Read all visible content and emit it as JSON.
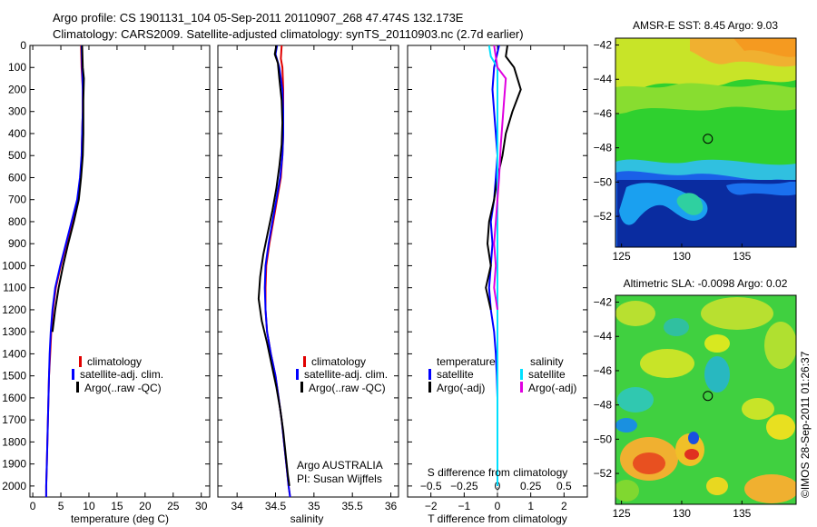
{
  "figure": {
    "title_line1": "Argo profile: CS 1901131_104 05-Sep-2011 20110907_268 47.474S 132.173E",
    "title_line2": "Climatology: CARS2009. Satellite-adjusted climatology: synTS_20110903.nc (2.7d earlier)",
    "watermark": "©IMOS 28-Sep-2011 01:26:37"
  },
  "colors": {
    "climatology": "#e00000",
    "satellite": "#0000ff",
    "argo": "#000000",
    "salinity_satellite": "#00e0ff",
    "salinity_argo": "#e000e0"
  },
  "chart_data": [
    {
      "id": "temperature",
      "type": "line",
      "xlabel": "temperature (deg C)",
      "ylabel": "",
      "xlim": [
        -0.5,
        31.5
      ],
      "ylim": [
        0,
        2050
      ],
      "y_inverted": true,
      "xticks": [
        0,
        5,
        10,
        15,
        20,
        25,
        30
      ],
      "yticks": [
        0,
        100,
        200,
        300,
        400,
        500,
        600,
        700,
        800,
        900,
        1000,
        1100,
        1200,
        1300,
        1400,
        1500,
        1600,
        1700,
        1800,
        1900,
        2000
      ],
      "legend": {
        "position": "lower-right",
        "entries": [
          "climatology",
          "satellite-adj. clim.",
          "Argo(..raw -QC)"
        ]
      },
      "series": [
        {
          "name": "climatology",
          "color_key": "climatology",
          "points": [
            [
              8.6,
              0
            ],
            [
              8.7,
              100
            ],
            [
              8.9,
              200
            ],
            [
              8.9,
              300
            ],
            [
              8.8,
              400
            ],
            [
              8.7,
              500
            ],
            [
              8.5,
              600
            ],
            [
              8.0,
              700
            ],
            [
              7.0,
              800
            ],
            [
              6.0,
              900
            ],
            [
              5.0,
              1000
            ],
            [
              4.1,
              1100
            ],
            [
              3.6,
              1200
            ],
            [
              3.3,
              1300
            ],
            [
              3.1,
              1400
            ],
            [
              2.9,
              1500
            ],
            [
              2.8,
              1600
            ],
            [
              2.7,
              1700
            ],
            [
              2.6,
              1800
            ],
            [
              2.5,
              1900
            ],
            [
              2.4,
              2000
            ],
            [
              2.4,
              2050
            ]
          ]
        },
        {
          "name": "satellite-adj. clim.",
          "color_key": "satellite",
          "points": [
            [
              8.7,
              0
            ],
            [
              8.8,
              100
            ],
            [
              8.9,
              200
            ],
            [
              8.9,
              300
            ],
            [
              8.8,
              400
            ],
            [
              8.7,
              500
            ],
            [
              8.4,
              600
            ],
            [
              7.9,
              700
            ],
            [
              6.9,
              800
            ],
            [
              5.9,
              900
            ],
            [
              4.9,
              1000
            ],
            [
              4.0,
              1100
            ],
            [
              3.5,
              1200
            ],
            [
              3.2,
              1300
            ],
            [
              3.0,
              1400
            ],
            [
              2.9,
              1500
            ],
            [
              2.8,
              1600
            ],
            [
              2.7,
              1700
            ],
            [
              2.6,
              1800
            ],
            [
              2.5,
              1900
            ],
            [
              2.4,
              2000
            ],
            [
              2.4,
              2050
            ]
          ]
        },
        {
          "name": "Argo(..raw -QC)",
          "color_key": "argo",
          "points": [
            [
              8.8,
              0
            ],
            [
              8.9,
              100
            ],
            [
              9.1,
              150
            ],
            [
              9.0,
              250
            ],
            [
              9.0,
              400
            ],
            [
              8.9,
              500
            ],
            [
              8.6,
              600
            ],
            [
              8.2,
              700
            ],
            [
              7.3,
              800
            ],
            [
              6.3,
              900
            ],
            [
              5.4,
              1000
            ],
            [
              4.6,
              1100
            ],
            [
              4.0,
              1200
            ],
            [
              3.5,
              1300
            ]
          ]
        }
      ]
    },
    {
      "id": "salinity",
      "type": "line",
      "xlabel": "salinity",
      "ylabel": "",
      "xlim": [
        33.75,
        36.1
      ],
      "ylim": [
        0,
        2050
      ],
      "y_inverted": true,
      "xticks": [
        34,
        34.5,
        35,
        35.5,
        36
      ],
      "legend": {
        "position": "lower-right",
        "entries": [
          "climatology",
          "satellite-adj. clim.",
          "Argo(..raw -QC)"
        ]
      },
      "annotation": [
        "Argo AUSTRALIA",
        "PI: Susan Wijffels"
      ],
      "series": [
        {
          "name": "climatology",
          "color_key": "climatology",
          "points": [
            [
              34.58,
              0
            ],
            [
              34.57,
              60
            ],
            [
              34.59,
              100
            ],
            [
              34.6,
              200
            ],
            [
              34.6,
              300
            ],
            [
              34.6,
              400
            ],
            [
              34.59,
              500
            ],
            [
              34.57,
              600
            ],
            [
              34.52,
              700
            ],
            [
              34.47,
              800
            ],
            [
              34.42,
              900
            ],
            [
              34.38,
              1000
            ],
            [
              34.37,
              1100
            ],
            [
              34.37,
              1200
            ],
            [
              34.39,
              1300
            ],
            [
              34.44,
              1400
            ],
            [
              34.5,
              1500
            ],
            [
              34.54,
              1600
            ],
            [
              34.58,
              1700
            ],
            [
              34.61,
              1800
            ],
            [
              34.64,
              1900
            ],
            [
              34.67,
              2000
            ],
            [
              34.69,
              2050
            ]
          ]
        },
        {
          "name": "satellite-adj. clim.",
          "color_key": "satellite",
          "points": [
            [
              34.52,
              0
            ],
            [
              34.5,
              40
            ],
            [
              34.55,
              100
            ],
            [
              34.59,
              200
            ],
            [
              34.6,
              300
            ],
            [
              34.6,
              400
            ],
            [
              34.59,
              500
            ],
            [
              34.56,
              600
            ],
            [
              34.51,
              700
            ],
            [
              34.46,
              800
            ],
            [
              34.41,
              900
            ],
            [
              34.37,
              1000
            ],
            [
              34.36,
              1100
            ],
            [
              34.37,
              1200
            ],
            [
              34.39,
              1300
            ],
            [
              34.44,
              1400
            ],
            [
              34.5,
              1500
            ],
            [
              34.54,
              1600
            ],
            [
              34.58,
              1700
            ],
            [
              34.61,
              1800
            ],
            [
              34.64,
              1900
            ],
            [
              34.67,
              2000
            ],
            [
              34.69,
              2050
            ]
          ]
        },
        {
          "name": "Argo(..raw -QC)",
          "color_key": "argo",
          "points": [
            [
              34.51,
              0
            ],
            [
              34.49,
              40
            ],
            [
              34.53,
              80
            ],
            [
              34.55,
              150
            ],
            [
              34.58,
              250
            ],
            [
              34.59,
              350
            ],
            [
              34.58,
              450
            ],
            [
              34.55,
              550
            ],
            [
              34.51,
              650
            ],
            [
              34.46,
              750
            ],
            [
              34.4,
              850
            ],
            [
              34.34,
              950
            ],
            [
              34.3,
              1050
            ],
            [
              34.28,
              1150
            ],
            [
              34.32,
              1250
            ],
            [
              34.39,
              1350
            ],
            [
              34.45,
              1450
            ],
            [
              34.51,
              1550
            ],
            [
              34.56,
              1650
            ],
            [
              34.6,
              1750
            ],
            [
              34.63,
              1850
            ],
            [
              34.66,
              1950
            ],
            [
              34.68,
              2000
            ]
          ]
        }
      ]
    },
    {
      "id": "difference",
      "type": "line",
      "xlabel": "T difference from climatology",
      "xlabel_top": "S difference from climatology",
      "ylabel": "",
      "xlim": [
        -2.7,
        2.7
      ],
      "ylim": [
        0,
        2050
      ],
      "y_inverted": true,
      "xticks": [
        -2,
        -1,
        0,
        1,
        2
      ],
      "xticks_s": [
        -0.5,
        -0.25,
        0,
        0.25,
        0.5
      ],
      "legend": {
        "position": "lower-right",
        "headers": [
          "temperature",
          "salinity"
        ],
        "entries": [
          "satellite",
          "Argo(-adj)",
          "satellite",
          "Argo(-adj)"
        ]
      },
      "series": [
        {
          "name": "temperature satellite",
          "color_key": "satellite",
          "points": [
            [
              0.05,
              0
            ],
            [
              -0.1,
              100
            ],
            [
              -0.15,
              200
            ],
            [
              -0.1,
              300
            ],
            [
              -0.05,
              400
            ],
            [
              0.0,
              500
            ],
            [
              -0.05,
              600
            ],
            [
              -0.1,
              700
            ],
            [
              -0.2,
              800
            ],
            [
              -0.15,
              900
            ],
            [
              -0.2,
              1000
            ],
            [
              -0.25,
              1100
            ],
            [
              -0.2,
              1200
            ],
            [
              -0.1,
              1300
            ],
            [
              -0.05,
              1400
            ],
            [
              -0.02,
              1500
            ],
            [
              0.0,
              1600
            ],
            [
              0.0,
              1700
            ],
            [
              0.0,
              1800
            ],
            [
              0.0,
              1900
            ],
            [
              0.0,
              2000
            ]
          ]
        },
        {
          "name": "temperature Argo(-adj)",
          "color_key": "argo",
          "points": [
            [
              0.3,
              0
            ],
            [
              0.25,
              50
            ],
            [
              0.5,
              100
            ],
            [
              0.7,
              200
            ],
            [
              0.45,
              300
            ],
            [
              0.25,
              400
            ],
            [
              0.15,
              500
            ],
            [
              0.0,
              600
            ],
            [
              -0.1,
              700
            ],
            [
              -0.25,
              800
            ],
            [
              -0.3,
              900
            ],
            [
              -0.2,
              1000
            ],
            [
              -0.35,
              1100
            ],
            [
              -0.2,
              1200
            ]
          ]
        },
        {
          "name": "salinity satellite",
          "color_key": "salinity_satellite",
          "points": [
            [
              -0.25,
              0
            ],
            [
              -0.2,
              50
            ],
            [
              0.0,
              100
            ],
            [
              0.0,
              200
            ],
            [
              0.0,
              300
            ],
            [
              0.0,
              400
            ],
            [
              0.0,
              500
            ],
            [
              0.0,
              600
            ],
            [
              0.0,
              700
            ],
            [
              0.0,
              800
            ],
            [
              0.0,
              900
            ],
            [
              0.0,
              1000
            ],
            [
              0.0,
              1100
            ],
            [
              0.0,
              1200
            ],
            [
              0.0,
              1300
            ],
            [
              0.0,
              1400
            ],
            [
              0.0,
              1500
            ],
            [
              0.0,
              1600
            ],
            [
              0.0,
              1700
            ],
            [
              0.0,
              1800
            ],
            [
              0.0,
              1900
            ],
            [
              0.0,
              2000
            ]
          ]
        },
        {
          "name": "salinity Argo(-adj)",
          "color_key": "salinity_argo",
          "points": [
            [
              -0.1,
              0
            ],
            [
              0.0,
              100
            ],
            [
              0.25,
              150
            ],
            [
              0.2,
              250
            ],
            [
              0.15,
              350
            ],
            [
              0.1,
              450
            ],
            [
              0.05,
              600
            ],
            [
              0.0,
              700
            ],
            [
              -0.05,
              800
            ],
            [
              -0.1,
              900
            ],
            [
              -0.05,
              1000
            ],
            [
              -0.1,
              1100
            ],
            [
              0.0,
              1200
            ]
          ]
        }
      ]
    },
    {
      "id": "sst-map",
      "type": "heatmap",
      "title": "AMSR-E SST: 8.45 Argo: 9.03",
      "xlim": [
        124.5,
        139.5
      ],
      "ylim": [
        -53.8,
        -41.6
      ],
      "xticks": [
        125,
        130,
        135
      ],
      "yticks": [
        -42,
        -44,
        -46,
        -48,
        -50,
        -52
      ],
      "marker": {
        "lon": 132.173,
        "lat": -47.474
      }
    },
    {
      "id": "sla-map",
      "type": "heatmap",
      "title": "Altimetric SLA: -0.0098 Argo: 0.02",
      "xlim": [
        124.5,
        139.5
      ],
      "ylim": [
        -53.8,
        -41.6
      ],
      "xticks": [
        125,
        130,
        135
      ],
      "yticks": [
        -42,
        -44,
        -46,
        -48,
        -50,
        -52
      ],
      "marker": {
        "lon": 132.173,
        "lat": -47.474
      }
    }
  ]
}
